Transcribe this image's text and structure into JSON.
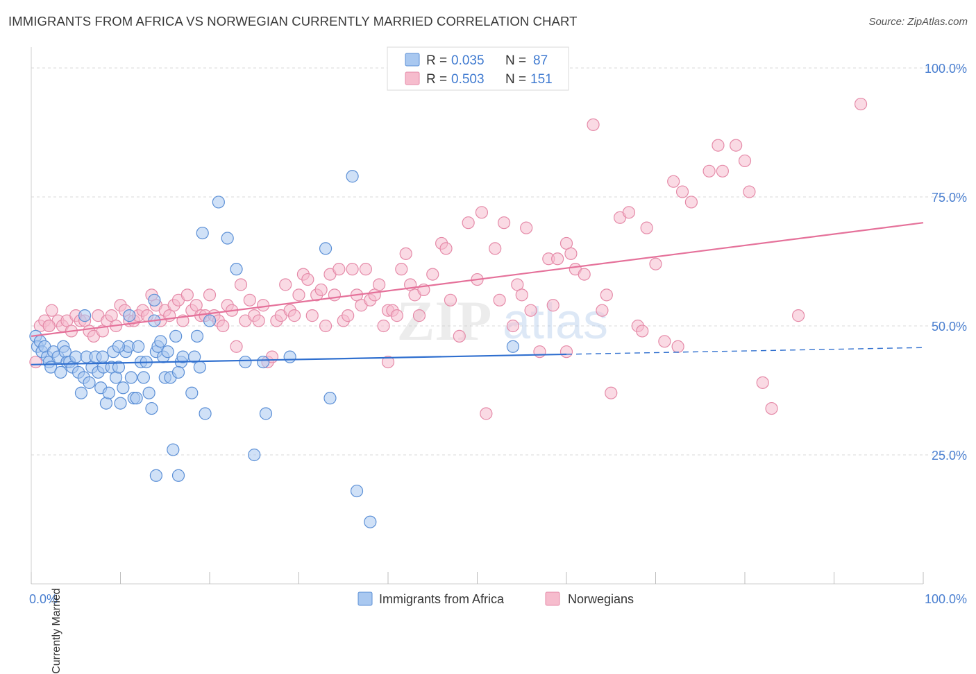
{
  "title": "IMMIGRANTS FROM AFRICA VS NORWEGIAN CURRENTLY MARRIED CORRELATION CHART",
  "source": "Source: ZipAtlas.com",
  "watermark": {
    "zip": "ZIP",
    "atlas": "atlas"
  },
  "colors": {
    "blue_fill": "#a9c8f0",
    "blue_stroke": "#5b8fd6",
    "blue_line": "#2f6fcf",
    "pink_fill": "#f6bccd",
    "pink_stroke": "#e58aa8",
    "pink_line": "#e5719a",
    "tick_label": "#4a7fd0",
    "grid": "#d9d9d9"
  },
  "legend_top": [
    {
      "r_label": "R =",
      "r_value": "0.035",
      "n_label": "N =",
      "n_value": "87",
      "color": "blue"
    },
    {
      "r_label": "R =",
      "r_value": "0.503",
      "n_label": "N =",
      "n_value": "151",
      "color": "pink"
    }
  ],
  "legend_bottom": [
    {
      "label": "Immigrants from Africa",
      "color": "blue"
    },
    {
      "label": "Norwegians",
      "color": "pink"
    }
  ],
  "chart_data": {
    "type": "scatter",
    "title": "IMMIGRANTS FROM AFRICA VS NORWEGIAN CURRENTLY MARRIED CORRELATION CHART",
    "xlabel": "",
    "ylabel": "Currently Married",
    "xlim": [
      0,
      100
    ],
    "ylim": [
      0,
      104
    ],
    "x_tick_labels": [
      {
        "value": 0,
        "label": "0.0%"
      },
      {
        "value": 100,
        "label": "100.0%"
      }
    ],
    "y_tick_labels": [
      {
        "value": 25,
        "label": "25.0%"
      },
      {
        "value": 50,
        "label": "50.0%"
      },
      {
        "value": 75,
        "label": "75.0%"
      },
      {
        "value": 100,
        "label": "100.0%"
      }
    ],
    "grid": true,
    "series": [
      {
        "name": "Immigrants from Africa",
        "color": "blue",
        "trend": {
          "x0": 0,
          "y0": 42.5,
          "x1": 60,
          "y1": 44.5,
          "dash_to_x": 100,
          "dash_to_y": 45.8
        },
        "points": [
          [
            0.5,
            48
          ],
          [
            0.7,
            46
          ],
          [
            1,
            47
          ],
          [
            1.2,
            45
          ],
          [
            1.5,
            46
          ],
          [
            1.8,
            44
          ],
          [
            2,
            43
          ],
          [
            2.2,
            42
          ],
          [
            2.5,
            45
          ],
          [
            3,
            44
          ],
          [
            3.3,
            41
          ],
          [
            3.6,
            46
          ],
          [
            3.8,
            45
          ],
          [
            4,
            43
          ],
          [
            4.3,
            43
          ],
          [
            4.6,
            42
          ],
          [
            5,
            44
          ],
          [
            5.3,
            41
          ],
          [
            5.6,
            37
          ],
          [
            5.9,
            40
          ],
          [
            6.2,
            44
          ],
          [
            6.5,
            39
          ],
          [
            6.8,
            42
          ],
          [
            7.2,
            44
          ],
          [
            7.5,
            41
          ],
          [
            7.8,
            38
          ],
          [
            8.1,
            42
          ],
          [
            8.4,
            35
          ],
          [
            8.7,
            37
          ],
          [
            9,
            42
          ],
          [
            9.2,
            45
          ],
          [
            9.5,
            40
          ],
          [
            9.8,
            42
          ],
          [
            10,
            35
          ],
          [
            10.3,
            38
          ],
          [
            10.6,
            45
          ],
          [
            10.9,
            46
          ],
          [
            11.2,
            40
          ],
          [
            11.5,
            36
          ],
          [
            11.8,
            36
          ],
          [
            12,
            46
          ],
          [
            12.3,
            43
          ],
          [
            12.6,
            40
          ],
          [
            12.9,
            43
          ],
          [
            13.2,
            37
          ],
          [
            13.5,
            34
          ],
          [
            13.8,
            51
          ],
          [
            14,
            45
          ],
          [
            14.2,
            46
          ],
          [
            14.5,
            47
          ],
          [
            14.8,
            44
          ],
          [
            15,
            40
          ],
          [
            15.3,
            45
          ],
          [
            15.6,
            40
          ],
          [
            15.9,
            26
          ],
          [
            16.2,
            48
          ],
          [
            16.5,
            21
          ],
          [
            16.8,
            43
          ],
          [
            17,
            44
          ],
          [
            18,
            37
          ],
          [
            18.3,
            44
          ],
          [
            18.6,
            48
          ],
          [
            18.9,
            42
          ],
          [
            19.2,
            68
          ],
          [
            19.5,
            33
          ],
          [
            20,
            51
          ],
          [
            21,
            74
          ],
          [
            22,
            67
          ],
          [
            23,
            61
          ],
          [
            24,
            43
          ],
          [
            25,
            25
          ],
          [
            26,
            43
          ],
          [
            26.3,
            33
          ],
          [
            29,
            44
          ],
          [
            33,
            65
          ],
          [
            33.5,
            36
          ],
          [
            36,
            79
          ],
          [
            36.5,
            18
          ],
          [
            38,
            12
          ],
          [
            54,
            46
          ],
          [
            13.8,
            55
          ],
          [
            14,
            21
          ],
          [
            11,
            52
          ],
          [
            8,
            44
          ],
          [
            6,
            52
          ],
          [
            9.8,
            46
          ],
          [
            16.5,
            41
          ]
        ]
      },
      {
        "name": "Norwegians",
        "color": "pink",
        "trend": {
          "x0": 0,
          "y0": 48,
          "x1": 100,
          "y1": 70
        },
        "points": [
          [
            0.5,
            43
          ],
          [
            1,
            50
          ],
          [
            1.5,
            51
          ],
          [
            2,
            50
          ],
          [
            2.3,
            53
          ],
          [
            3,
            51
          ],
          [
            3.5,
            50
          ],
          [
            4,
            51
          ],
          [
            4.5,
            49
          ],
          [
            5,
            52
          ],
          [
            5.5,
            51
          ],
          [
            6,
            51
          ],
          [
            6.5,
            49
          ],
          [
            7,
            48
          ],
          [
            7.5,
            52
          ],
          [
            8,
            49
          ],
          [
            8.5,
            51
          ],
          [
            9,
            52
          ],
          [
            9.5,
            50
          ],
          [
            10,
            54
          ],
          [
            10.5,
            53
          ],
          [
            11,
            51
          ],
          [
            11.5,
            51
          ],
          [
            12,
            52
          ],
          [
            12.5,
            53
          ],
          [
            13,
            52
          ],
          [
            13.5,
            56
          ],
          [
            14,
            54
          ],
          [
            14.5,
            51
          ],
          [
            15,
            53
          ],
          [
            15.5,
            52
          ],
          [
            16,
            54
          ],
          [
            16.5,
            55
          ],
          [
            17,
            51
          ],
          [
            17.5,
            56
          ],
          [
            18,
            53
          ],
          [
            18.5,
            54
          ],
          [
            19,
            52
          ],
          [
            19.5,
            52
          ],
          [
            20,
            56
          ],
          [
            20.5,
            52
          ],
          [
            21,
            51
          ],
          [
            21.5,
            50
          ],
          [
            22,
            54
          ],
          [
            22.5,
            53
          ],
          [
            23,
            46
          ],
          [
            23.5,
            58
          ],
          [
            24,
            51
          ],
          [
            24.5,
            55
          ],
          [
            25,
            52
          ],
          [
            25.5,
            51
          ],
          [
            26,
            54
          ],
          [
            26.5,
            43
          ],
          [
            27,
            44
          ],
          [
            27.5,
            51
          ],
          [
            28,
            52
          ],
          [
            28.5,
            58
          ],
          [
            29,
            53
          ],
          [
            29.5,
            52
          ],
          [
            30,
            56
          ],
          [
            30.5,
            60
          ],
          [
            31,
            59
          ],
          [
            31.5,
            52
          ],
          [
            32,
            56
          ],
          [
            32.5,
            57
          ],
          [
            33,
            50
          ],
          [
            33.5,
            60
          ],
          [
            34,
            56
          ],
          [
            34.5,
            61
          ],
          [
            35,
            51
          ],
          [
            35.5,
            52
          ],
          [
            36,
            61
          ],
          [
            36.5,
            56
          ],
          [
            37,
            54
          ],
          [
            37.5,
            61
          ],
          [
            38,
            55
          ],
          [
            38.5,
            56
          ],
          [
            39,
            58
          ],
          [
            39.5,
            50
          ],
          [
            40,
            53
          ],
          [
            40.5,
            53
          ],
          [
            41,
            52
          ],
          [
            41.5,
            61
          ],
          [
            42,
            64
          ],
          [
            42.5,
            58
          ],
          [
            43,
            56
          ],
          [
            43.5,
            52
          ],
          [
            44,
            57
          ],
          [
            45,
            60
          ],
          [
            46,
            66
          ],
          [
            46.5,
            65
          ],
          [
            47,
            55
          ],
          [
            48,
            48
          ],
          [
            49,
            70
          ],
          [
            50,
            59
          ],
          [
            50.5,
            72
          ],
          [
            51,
            33
          ],
          [
            52,
            65
          ],
          [
            52.5,
            55
          ],
          [
            53,
            70
          ],
          [
            54,
            50
          ],
          [
            54.5,
            58
          ],
          [
            55,
            56
          ],
          [
            55.5,
            69
          ],
          [
            56,
            53
          ],
          [
            57,
            45
          ],
          [
            58,
            63
          ],
          [
            58.5,
            54
          ],
          [
            59,
            63
          ],
          [
            60,
            66
          ],
          [
            60.5,
            64
          ],
          [
            61,
            61
          ],
          [
            62,
            60
          ],
          [
            63,
            89
          ],
          [
            64,
            53
          ],
          [
            64.5,
            56
          ],
          [
            65,
            37
          ],
          [
            66,
            71
          ],
          [
            67,
            72
          ],
          [
            68,
            50
          ],
          [
            68.5,
            49
          ],
          [
            69,
            69
          ],
          [
            70,
            62
          ],
          [
            71,
            47
          ],
          [
            72,
            78
          ],
          [
            72.5,
            46
          ],
          [
            73,
            76
          ],
          [
            74,
            74
          ],
          [
            76,
            80
          ],
          [
            77,
            85
          ],
          [
            77.5,
            80
          ],
          [
            79,
            85
          ],
          [
            80,
            82
          ],
          [
            80.5,
            76
          ],
          [
            82,
            39
          ],
          [
            83,
            34
          ],
          [
            86,
            52
          ],
          [
            93,
            93
          ],
          [
            2,
            50
          ],
          [
            40,
            43
          ],
          [
            60,
            45
          ]
        ]
      }
    ]
  }
}
